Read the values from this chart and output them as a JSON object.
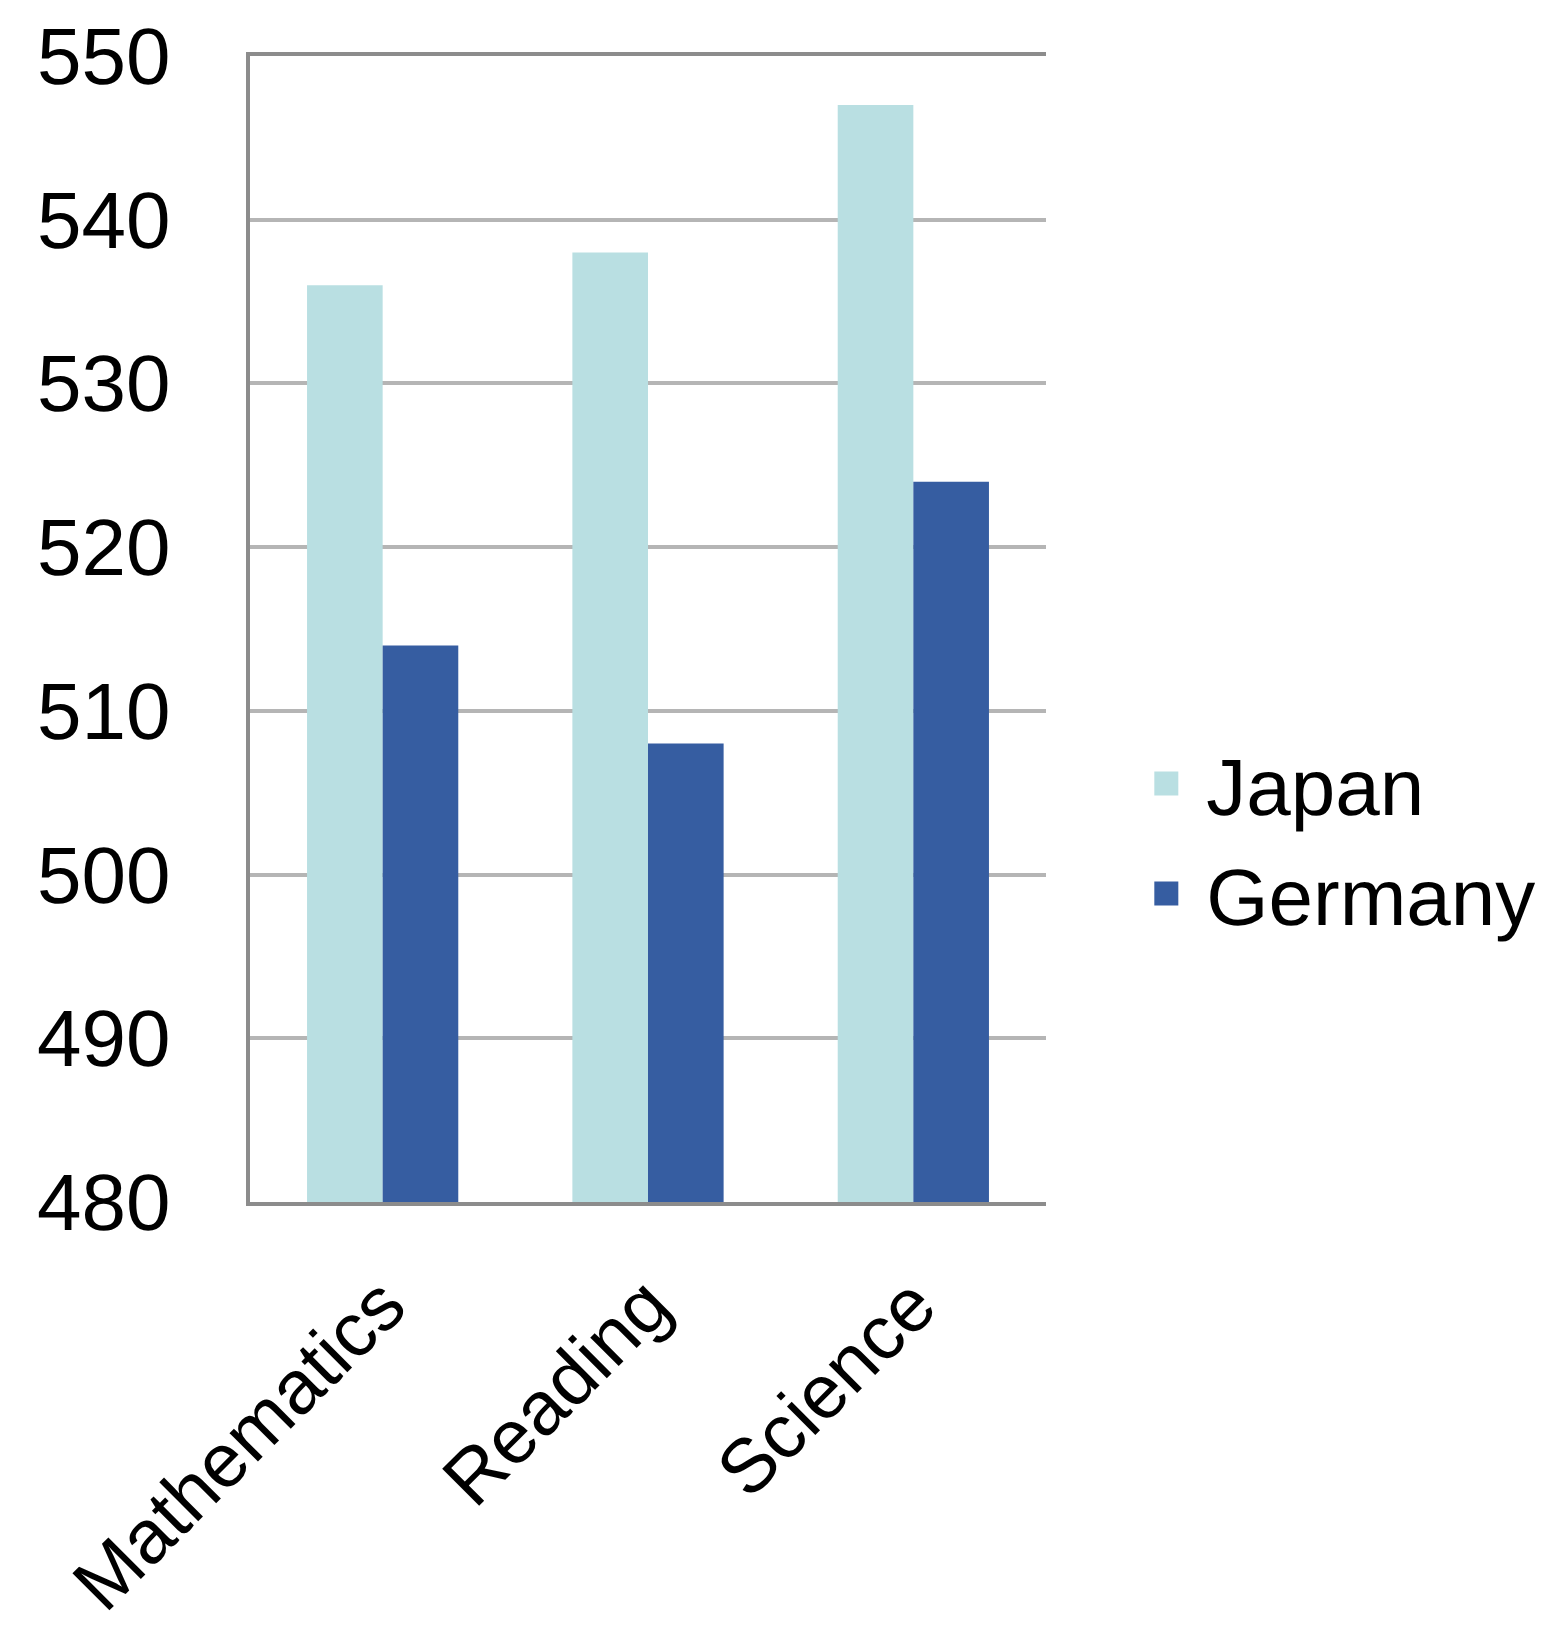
{
  "chart_data": {
    "type": "bar",
    "categories": [
      "Mathematics",
      "Reading",
      "Science"
    ],
    "series": [
      {
        "name": "Japan",
        "color": "#b9dfe2",
        "values": [
          536,
          538,
          547
        ]
      },
      {
        "name": "Germany",
        "color": "#365da1",
        "values": [
          514,
          508,
          524
        ]
      }
    ],
    "ylim": [
      480,
      550
    ],
    "yticks": [
      480,
      490,
      500,
      510,
      520,
      530,
      540,
      550
    ],
    "grid": "y",
    "legend": "right"
  }
}
